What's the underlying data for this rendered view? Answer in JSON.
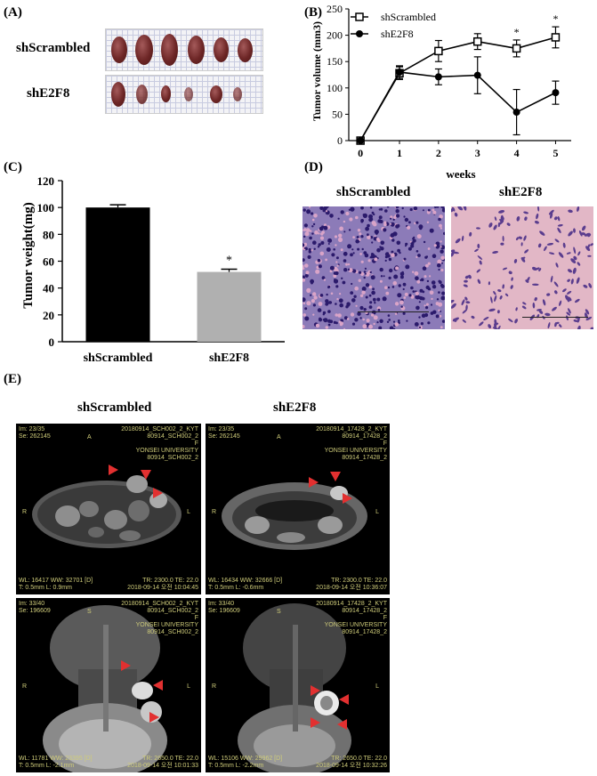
{
  "panels": {
    "a": "(A)",
    "b": "(B)",
    "c": "(C)",
    "d": "(D)",
    "e": "(E)"
  },
  "groups": {
    "control": "shScrambled",
    "knockdown": "shE2F8"
  },
  "chart_data": [
    {
      "type": "line",
      "xlabel": "weeks",
      "ylabel": "Tumor volume (mm3)",
      "x": [
        0,
        1,
        2,
        3,
        4,
        5
      ],
      "xlim": [
        -0.3,
        5.4
      ],
      "ylim": [
        0,
        250
      ],
      "yticks": [
        0,
        50,
        100,
        150,
        200,
        250
      ],
      "xticks": [
        0,
        1,
        2,
        3,
        4,
        5
      ],
      "series": [
        {
          "name": "shScrambled",
          "marker": "open-square",
          "values": [
            0,
            128,
            170,
            188,
            175,
            196
          ],
          "errors": [
            0,
            12,
            20,
            15,
            16,
            20
          ]
        },
        {
          "name": "shE2F8",
          "marker": "filled-circle",
          "values": [
            0,
            130,
            121,
            124,
            54,
            91
          ],
          "errors": [
            0,
            12,
            15,
            35,
            43,
            22
          ]
        }
      ],
      "significance": [
        {
          "x": 4,
          "label": "*"
        },
        {
          "x": 5,
          "label": "*"
        }
      ],
      "legend": "top-right"
    },
    {
      "type": "bar",
      "ylabel": "Tumor weight(mg)",
      "categories": [
        "shScrambled",
        "shE2F8"
      ],
      "values": [
        100,
        52
      ],
      "errors": [
        2,
        2
      ],
      "colors": [
        "#000000",
        "#b0b0b0"
      ],
      "ylim": [
        0,
        120
      ],
      "yticks": [
        0,
        20,
        40,
        60,
        80,
        100,
        120
      ],
      "significance": [
        {
          "category": "shE2F8",
          "label": "*"
        }
      ]
    }
  ],
  "mri": [
    {
      "lines_left": "Im: 23/35\nSe: 262145",
      "lines_right": "20180914_SCH002_2_KYT\n80914_SCH002_2\nF\nYONSEI UNIVERSITY\n80914_SCH002_2",
      "orient_a": "A",
      "orient_r": "R",
      "orient_l": "L",
      "bottom_left": "WL: 16417 WW: 32701 [D]\nT: 0.5mm L: 0.9mm",
      "bottom_right": "TR: 2300.0 TE: 22.0\n2018-09-14 오전 10:04:45"
    },
    {
      "lines_left": "Im: 23/35\nSe: 262145",
      "lines_right": "20180914_17428_2_KYT\n80914_17428_2\nF\nYONSEI UNIVERSITY\n80914_17428_2",
      "orient_a": "A",
      "orient_r": "R",
      "orient_l": "L",
      "bottom_left": "WL: 16434 WW: 32666 [D]\nT: 0.5mm L: -0.6mm",
      "bottom_right": "TR: 2300.0 TE: 22.0\n2018-09-14 오전 10:36:07"
    },
    {
      "lines_left": "Im: 33/40\nSe: 196609",
      "lines_right": "20180914_SCH002_2_KYT\n80914_SCH002_2\nF\nYONSEI UNIVERSITY\n80914_SCH002_2",
      "orient_a": "S",
      "orient_r": "R",
      "orient_l": "L",
      "bottom_left": "WL: 11781 WW: 23395 [D]\nT: 0.5mm L: -2.1mm",
      "bottom_right": "TR: 2650.0 TE: 22.0\n2018-09-14 오전 10:01:33"
    },
    {
      "lines_left": "Im: 33/40\nSe: 196609",
      "lines_right": "20180914_17428_2_KYT\n80914_17428_2\nF\nYONSEI UNIVERSITY\n80914_17428_2",
      "orient_a": "S",
      "orient_r": "R",
      "orient_l": "L",
      "bottom_left": "WL: 15106 WW: 29962 [D]\nT: 0.5mm L: -2.2mm",
      "bottom_right": "TR: 2650.0 TE: 22.0\n2018-09-14 오전 10:32:26"
    }
  ]
}
